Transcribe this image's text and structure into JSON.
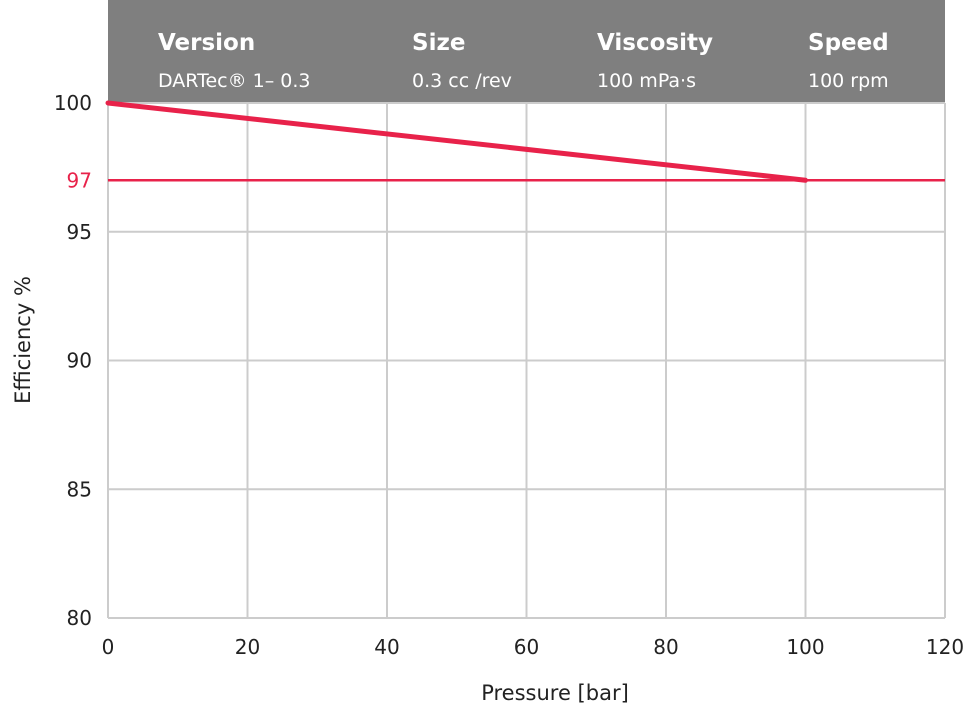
{
  "chart_data": {
    "type": "line",
    "header": [
      {
        "key": "Version",
        "value": "DARTec® 1– 0.3"
      },
      {
        "key": "Size",
        "value": "0.3 cc /rev"
      },
      {
        "key": "Viscosity",
        "value": "100 mPa·s"
      },
      {
        "key": "Speed",
        "value": "100 rpm"
      }
    ],
    "xlabel": "Pressure [bar]",
    "ylabel": "Efficiency %",
    "xlim": [
      0,
      120
    ],
    "ylim": [
      80,
      100
    ],
    "x_ticks": [
      0,
      20,
      40,
      60,
      80,
      100,
      120
    ],
    "y_ticks": [
      80,
      85,
      90,
      95,
      100
    ],
    "grid": true,
    "series": [
      {
        "x": [
          0,
          100
        ],
        "y": [
          100,
          97
        ],
        "color": "#e8224a"
      }
    ],
    "reference_line": {
      "y": 97,
      "label": "97",
      "color": "#e8224a"
    },
    "colors": {
      "header_bg": "#7f7f7f",
      "grid": "#cccccc",
      "accent": "#e8224a",
      "text": "#222222"
    }
  }
}
